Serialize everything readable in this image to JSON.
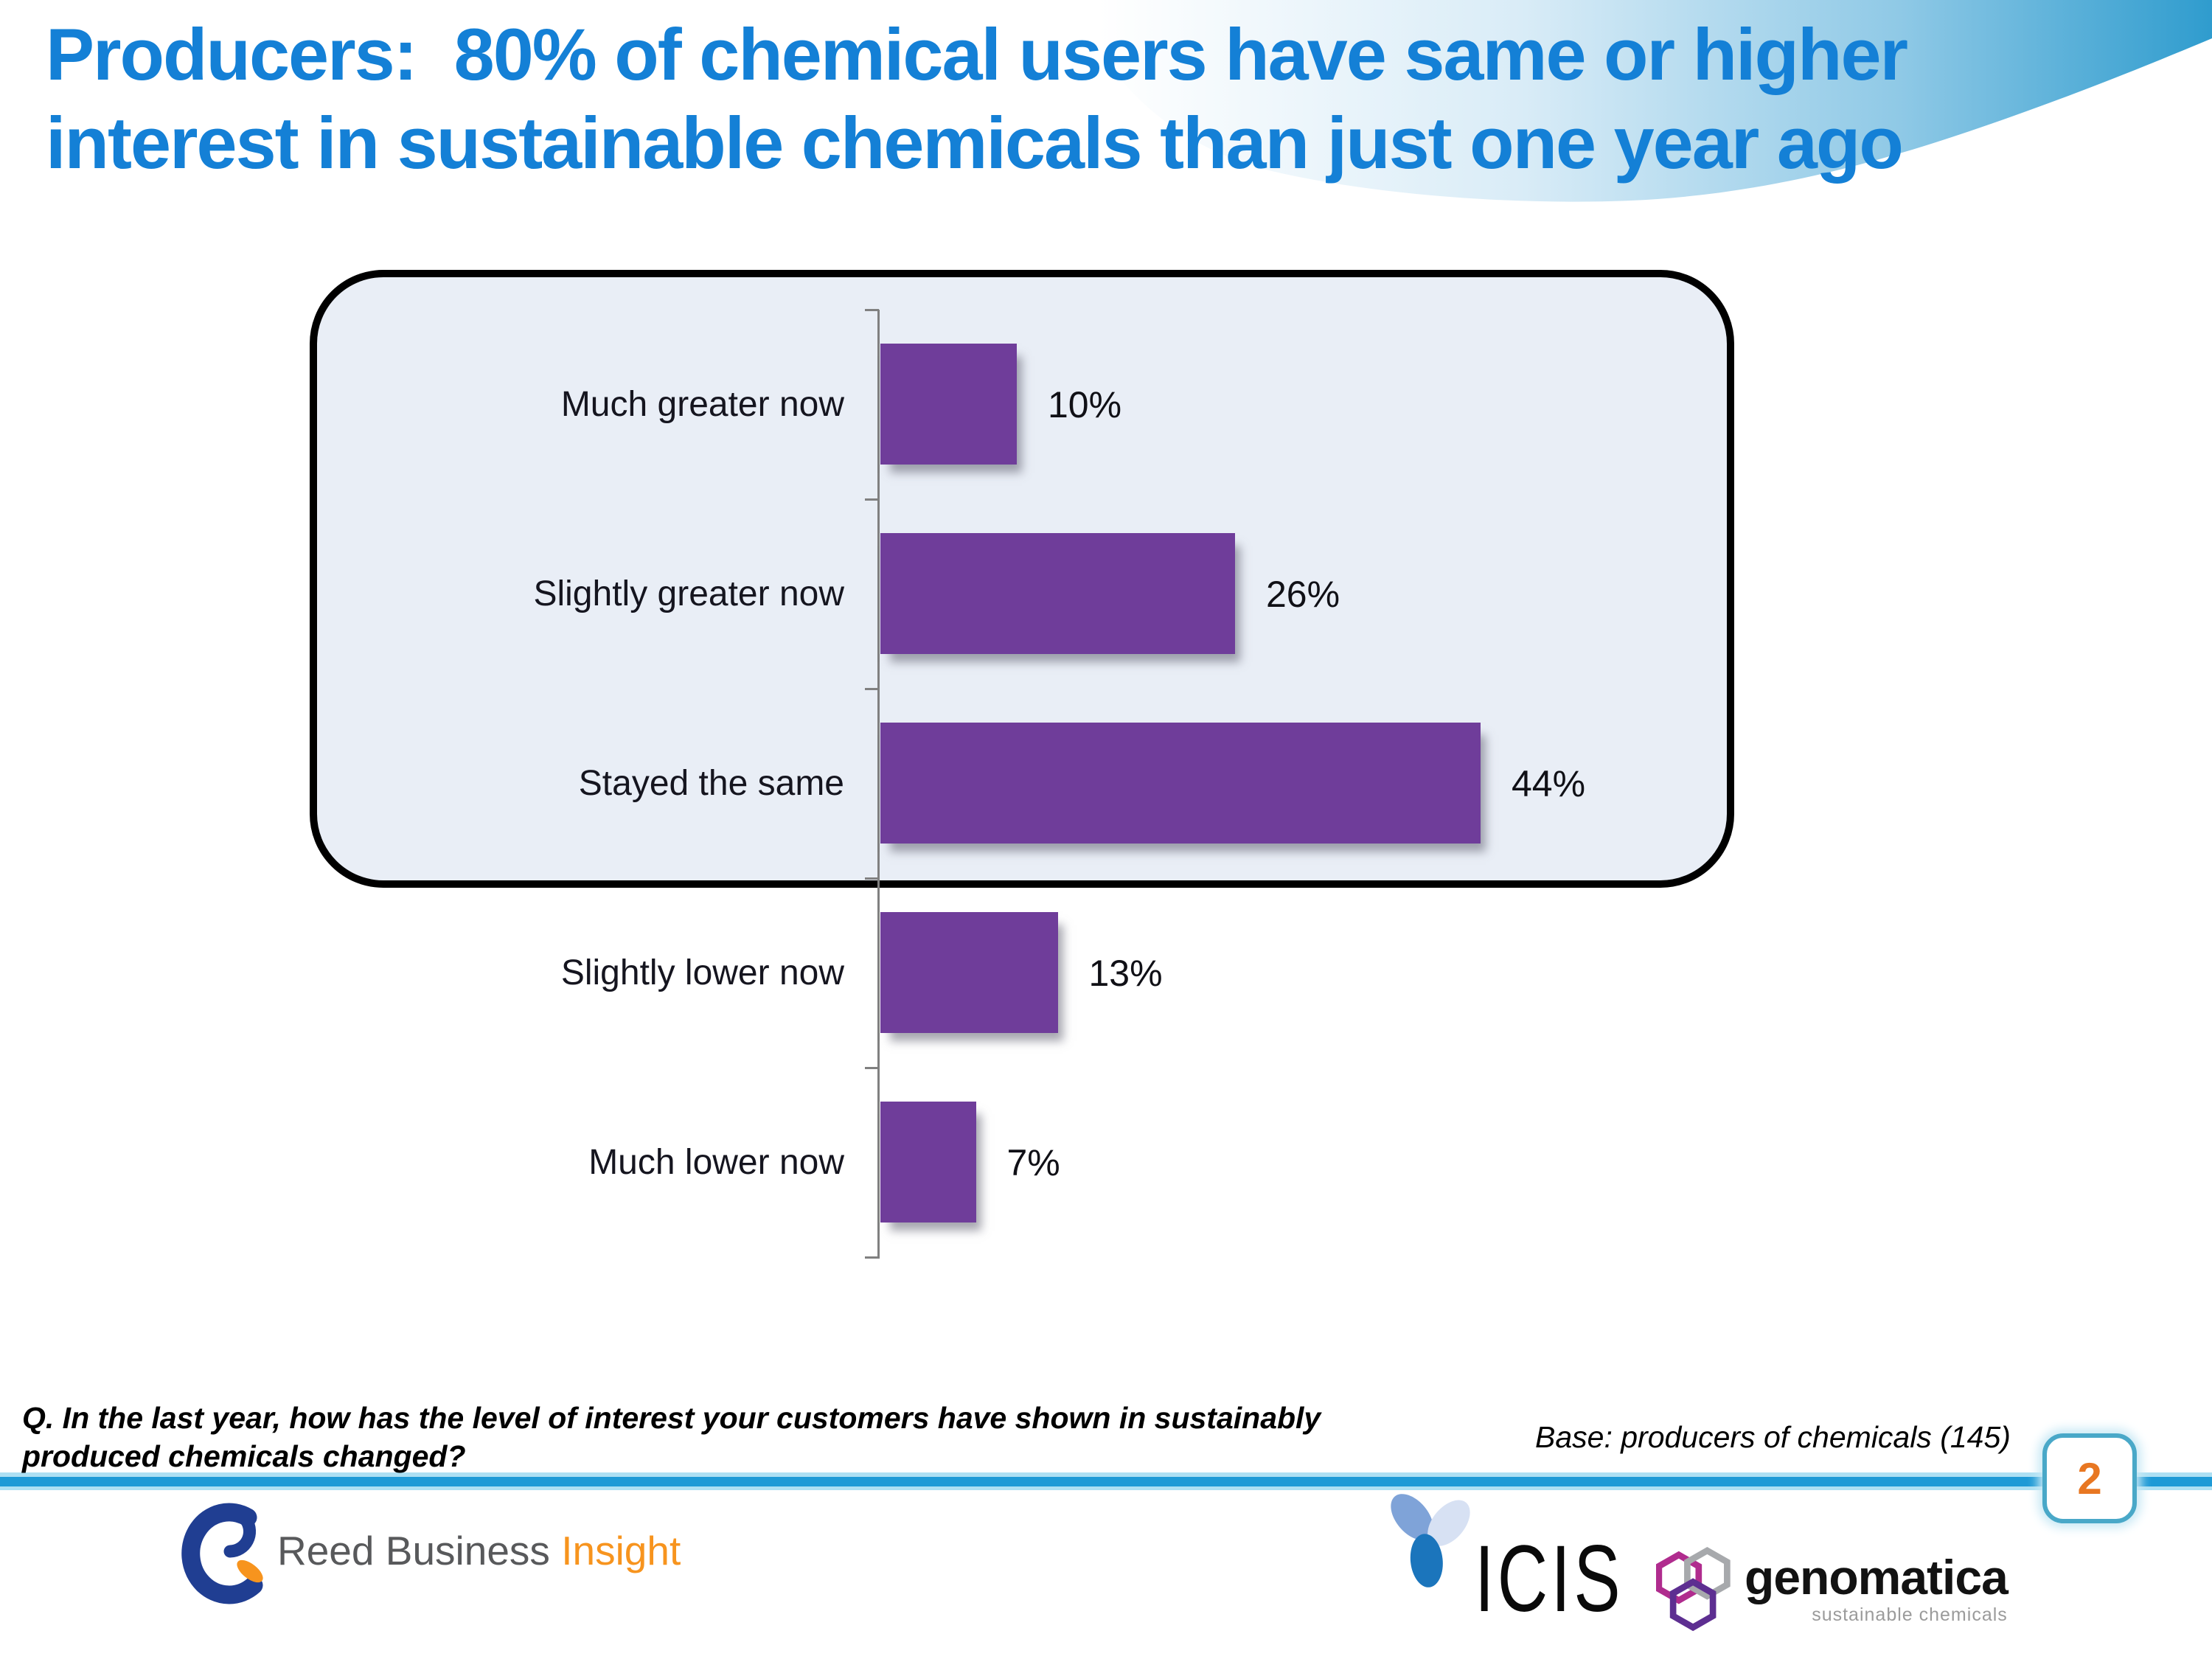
{
  "slide": {
    "title": "Producers:  80% of chemical users have same or higher interest in sustainable chemicals than just one year ago",
    "title_line1": "Producers:  80% of chemical users have same or higher",
    "title_line2": "interest in sustainable chemicals than just one year ago",
    "question": "Q. In the last year, how has the level of interest your customers have shown in sustainably produced chemicals changed?",
    "base_note": "Base: producers of chemicals (145)",
    "page_number": "2"
  },
  "chart_data": {
    "type": "bar",
    "orientation": "horizontal",
    "title": "",
    "xlabel": "",
    "ylabel": "",
    "categories": [
      "Much greater now",
      "Slightly greater now",
      "Stayed the same",
      "Slightly lower now",
      "Much lower now"
    ],
    "values": [
      10,
      26,
      44,
      13,
      7
    ],
    "value_labels": [
      "10%",
      "26%",
      "44%",
      "13%",
      "7%"
    ],
    "xlim": [
      0,
      50
    ],
    "grid": false,
    "legend": false,
    "bar_color": "#6F3D9A",
    "axis_color": "#808080",
    "highlight_box": {
      "covers": [
        "Much greater now",
        "Slightly greater now",
        "Stayed the same"
      ],
      "fill": "#E9EEF6",
      "border_color": "#000000"
    }
  },
  "footer": {
    "divider_color": "#1E9AD6",
    "logos": {
      "reed": {
        "text_main": "Reed Business ",
        "text_accent": "Insight",
        "main_color": "#58595B",
        "accent_color": "#F7941E",
        "mark_color": "#203E92"
      },
      "icis": {
        "text": "ICIS",
        "petal_colors": [
          "#7FA3D8",
          "#D7E1F3",
          "#1B75BC"
        ]
      },
      "genomatica": {
        "text": "genomatica",
        "tagline": "sustainable chemicals",
        "hex_colors": [
          "#B02C8E",
          "#A7A9AC",
          "#5D2E91"
        ]
      }
    }
  },
  "theme": {
    "title_color": "#1480D6",
    "page_number_color": "#E87722",
    "page_box_border": "#49A8C8",
    "swoosh_blue": "#2F9CCE"
  }
}
